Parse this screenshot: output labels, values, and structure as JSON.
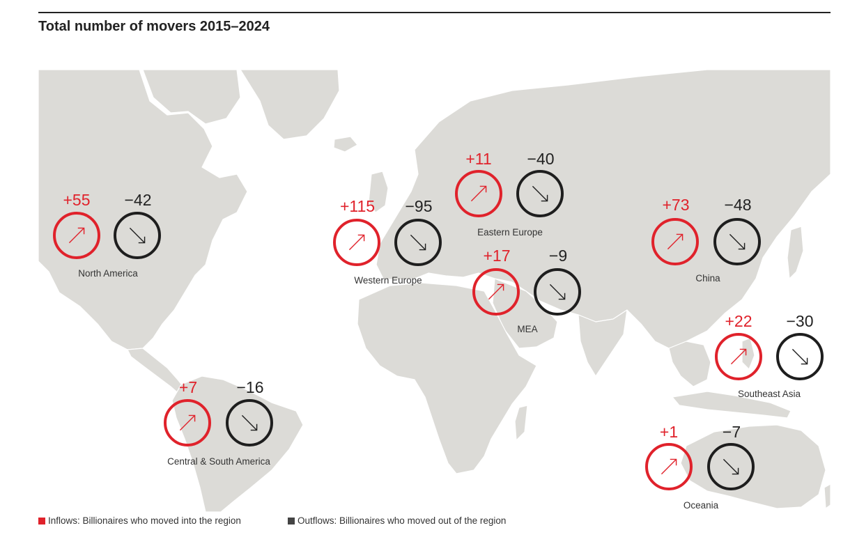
{
  "title": "Total number of movers 2015–2024",
  "colors": {
    "inflow": "#e0222b",
    "outflow": "#1e1e1e",
    "land": "#dcdbd7",
    "border": "#ffffff"
  },
  "regions": [
    {
      "key": "north-america",
      "label": "North America",
      "inflow": "+55",
      "outflow": "−42"
    },
    {
      "key": "western-europe",
      "label": "Western Europe",
      "inflow": "+115",
      "outflow": "−95"
    },
    {
      "key": "eastern-europe",
      "label": "Eastern Europe",
      "inflow": "+11",
      "outflow": "−40"
    },
    {
      "key": "mea",
      "label": "MEA",
      "inflow": "+17",
      "outflow": "−9"
    },
    {
      "key": "china",
      "label": "China",
      "inflow": "+73",
      "outflow": "−48"
    },
    {
      "key": "southeast-asia",
      "label": "Southeast Asia",
      "inflow": "+22",
      "outflow": "−30"
    },
    {
      "key": "central-south-america",
      "label": "Central & South America",
      "inflow": "+7",
      "outflow": "−16"
    },
    {
      "key": "oceania",
      "label": "Oceania",
      "inflow": "+1",
      "outflow": "−7"
    }
  ],
  "legend": {
    "inflows": "Inflows: Billionaires who moved into the region",
    "outflows": "Outflows: Billionaires who moved out of the region"
  }
}
